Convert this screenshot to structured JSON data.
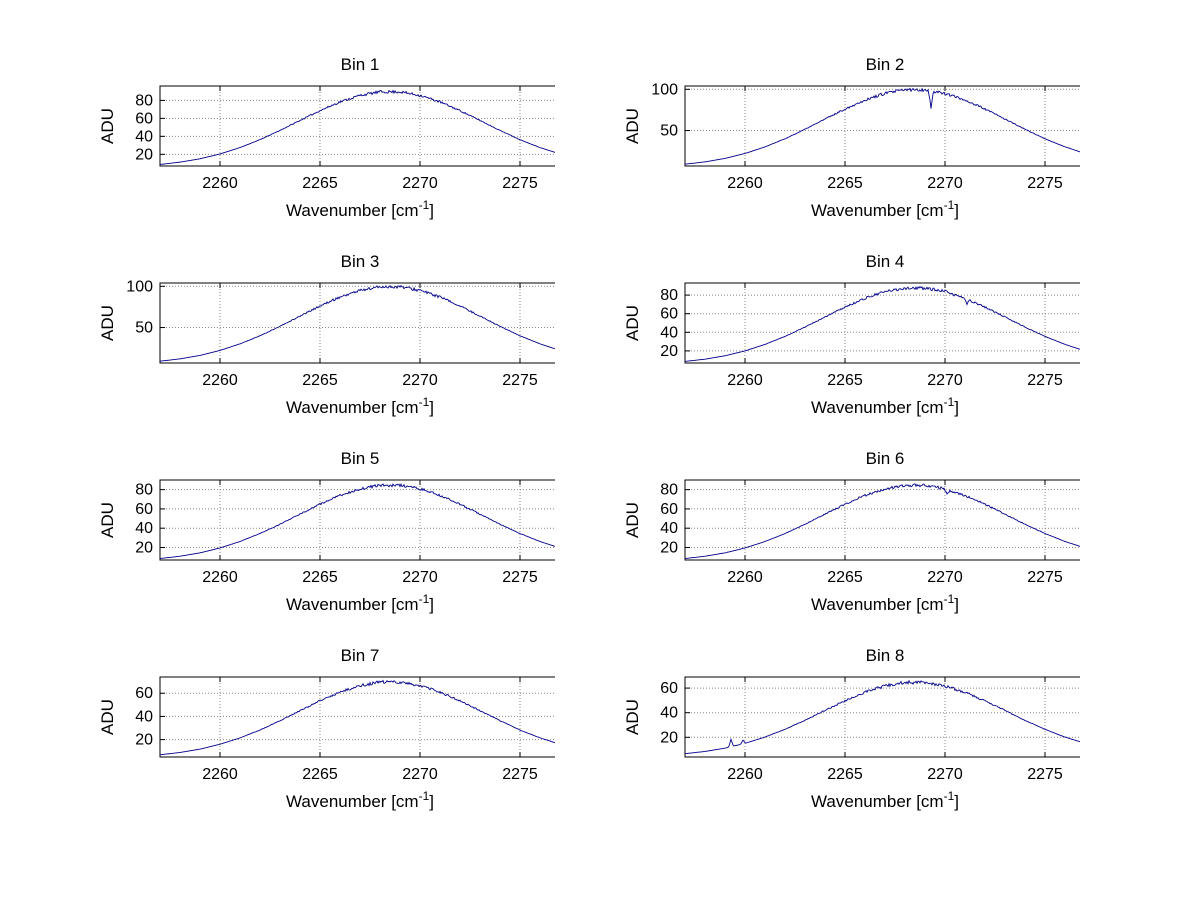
{
  "figure": {
    "background": "#ffffff",
    "line_color": "#00008B",
    "grid_color": "#888888",
    "axis_color": "#000000"
  },
  "chart_data": [
    {
      "type": "line",
      "title": "Bin 1",
      "xlabel": "Wavenumber [cm^-1]",
      "ylabel": "ADU",
      "xlim": [
        2257,
        2277
      ],
      "ylim": [
        7,
        96
      ],
      "xticks": [
        2260,
        2265,
        2270,
        2275
      ],
      "yticks": [
        20,
        40,
        60,
        80
      ],
      "grid": true,
      "legend": false,
      "seed": 11,
      "noise": 1.6,
      "spikes": [],
      "x": [
        2257,
        2258,
        2259,
        2260,
        2261,
        2262,
        2263,
        2264,
        2265,
        2266,
        2267,
        2268,
        2269,
        2270,
        2271,
        2272,
        2273,
        2274,
        2275,
        2276,
        2277
      ],
      "y": [
        8.7,
        11.3,
        15.0,
        20.4,
        27.5,
        36.3,
        46.6,
        57.7,
        68.6,
        78.3,
        85.6,
        89.5,
        89.5,
        85.6,
        78.3,
        68.6,
        57.7,
        46.6,
        36.3,
        27.5,
        20.4
      ]
    },
    {
      "type": "line",
      "title": "Bin 2",
      "xlabel": "Wavenumber [cm^-1]",
      "ylabel": "ADU",
      "xlim": [
        2257,
        2277
      ],
      "ylim": [
        7,
        104
      ],
      "xticks": [
        2260,
        2265,
        2270,
        2275
      ],
      "yticks": [
        50,
        100
      ],
      "grid": true,
      "legend": false,
      "seed": 22,
      "noise": 2.0,
      "spikes": [
        {
          "x": 2269.3,
          "dy": -22,
          "w": 0.12
        }
      ],
      "x": [
        2257,
        2258,
        2259,
        2260,
        2261,
        2262,
        2263,
        2264,
        2265,
        2266,
        2267,
        2268,
        2269,
        2270,
        2271,
        2272,
        2273,
        2274,
        2275,
        2276,
        2277
      ],
      "y": [
        9.2,
        12.0,
        16.2,
        22.2,
        30.2,
        40.0,
        51.5,
        63.9,
        76.1,
        87.0,
        95.1,
        99.4,
        99.4,
        95.1,
        87.0,
        76.1,
        63.9,
        51.5,
        40.0,
        30.2,
        22.2
      ]
    },
    {
      "type": "line",
      "title": "Bin 3",
      "xlabel": "Wavenumber [cm^-1]",
      "ylabel": "ADU",
      "xlim": [
        2257,
        2277
      ],
      "ylim": [
        7,
        104
      ],
      "xticks": [
        2260,
        2265,
        2270,
        2275
      ],
      "yticks": [
        50,
        100
      ],
      "grid": true,
      "legend": false,
      "seed": 33,
      "noise": 2.0,
      "spikes": [],
      "x": [
        2257,
        2258,
        2259,
        2260,
        2261,
        2262,
        2263,
        2264,
        2265,
        2266,
        2267,
        2268,
        2269,
        2270,
        2271,
        2272,
        2273,
        2274,
        2275,
        2276,
        2277
      ],
      "y": [
        9.2,
        12.0,
        16.2,
        22.2,
        30.2,
        40.0,
        51.5,
        63.9,
        76.1,
        87.0,
        95.1,
        99.4,
        99.4,
        95.1,
        87.0,
        76.1,
        63.9,
        51.5,
        40.0,
        30.2,
        22.2
      ]
    },
    {
      "type": "line",
      "title": "Bin 4",
      "xlabel": "Wavenumber [cm^-1]",
      "ylabel": "ADU",
      "xlim": [
        2257,
        2277
      ],
      "ylim": [
        7,
        93
      ],
      "xticks": [
        2260,
        2265,
        2270,
        2275
      ],
      "yticks": [
        20,
        40,
        60,
        80
      ],
      "grid": true,
      "legend": false,
      "seed": 44,
      "noise": 1.7,
      "spikes": [
        {
          "x": 2271.1,
          "dy": -5,
          "w": 0.15
        }
      ],
      "x": [
        2257,
        2258,
        2259,
        2260,
        2261,
        2262,
        2263,
        2264,
        2265,
        2266,
        2267,
        2268,
        2269,
        2270,
        2271,
        2272,
        2273,
        2274,
        2275,
        2276,
        2277
      ],
      "y": [
        8.7,
        11.1,
        14.8,
        20.0,
        27.0,
        35.6,
        45.6,
        56.4,
        67.1,
        76.6,
        83.7,
        87.5,
        87.5,
        83.7,
        76.6,
        67.1,
        56.4,
        45.6,
        35.6,
        27.0,
        20.0
      ]
    },
    {
      "type": "line",
      "title": "Bin 5",
      "xlabel": "Wavenumber [cm^-1]",
      "ylabel": "ADU",
      "xlim": [
        2257,
        2277
      ],
      "ylim": [
        7,
        90
      ],
      "xticks": [
        2260,
        2265,
        2270,
        2275
      ],
      "yticks": [
        20,
        40,
        60,
        80
      ],
      "grid": true,
      "legend": false,
      "seed": 55,
      "noise": 1.6,
      "spikes": [],
      "x": [
        2257,
        2258,
        2259,
        2260,
        2261,
        2262,
        2263,
        2264,
        2265,
        2266,
        2267,
        2268,
        2269,
        2270,
        2271,
        2272,
        2273,
        2274,
        2275,
        2276,
        2277
      ],
      "y": [
        8.5,
        10.9,
        14.4,
        19.5,
        26.2,
        34.5,
        44.1,
        54.6,
        64.9,
        74.0,
        80.9,
        84.5,
        84.5,
        80.9,
        74.0,
        64.9,
        54.6,
        44.1,
        34.5,
        26.2,
        19.5
      ]
    },
    {
      "type": "line",
      "title": "Bin 6",
      "xlabel": "Wavenumber [cm^-1]",
      "ylabel": "ADU",
      "xlim": [
        2257,
        2277
      ],
      "ylim": [
        7,
        90
      ],
      "xticks": [
        2260,
        2265,
        2270,
        2275
      ],
      "yticks": [
        20,
        40,
        60,
        80
      ],
      "grid": true,
      "legend": false,
      "seed": 66,
      "noise": 1.6,
      "spikes": [
        {
          "x": 2270.1,
          "dy": -6,
          "w": 0.15
        }
      ],
      "x": [
        2257,
        2258,
        2259,
        2260,
        2261,
        2262,
        2263,
        2264,
        2265,
        2266,
        2267,
        2268,
        2269,
        2270,
        2271,
        2272,
        2273,
        2274,
        2275,
        2276,
        2277
      ],
      "y": [
        8.5,
        10.9,
        14.4,
        19.5,
        26.2,
        34.5,
        44.1,
        54.6,
        64.9,
        74.0,
        80.9,
        84.5,
        84.5,
        80.9,
        74.0,
        64.9,
        54.6,
        44.1,
        34.5,
        26.2,
        19.5
      ]
    },
    {
      "type": "line",
      "title": "Bin 7",
      "xlabel": "Wavenumber [cm^-1]",
      "ylabel": "ADU",
      "xlim": [
        2257,
        2277
      ],
      "ylim": [
        5,
        74
      ],
      "xticks": [
        2260,
        2265,
        2270,
        2275
      ],
      "yticks": [
        20,
        40,
        60
      ],
      "grid": true,
      "legend": false,
      "seed": 77,
      "noise": 1.4,
      "spikes": [],
      "x": [
        2257,
        2258,
        2259,
        2260,
        2261,
        2262,
        2263,
        2264,
        2265,
        2266,
        2267,
        2268,
        2269,
        2270,
        2271,
        2272,
        2273,
        2274,
        2275,
        2276,
        2277
      ],
      "y": [
        6.9,
        8.9,
        11.8,
        16.0,
        21.5,
        28.3,
        36.3,
        44.9,
        53.4,
        60.9,
        66.6,
        69.6,
        69.6,
        66.6,
        60.9,
        53.4,
        44.9,
        36.3,
        28.3,
        21.5,
        16.0
      ]
    },
    {
      "type": "line",
      "title": "Bin 8",
      "xlabel": "Wavenumber [cm^-1]",
      "ylabel": "ADU",
      "xlim": [
        2257,
        2277
      ],
      "ylim": [
        4,
        69
      ],
      "xticks": [
        2260,
        2265,
        2270,
        2275
      ],
      "yticks": [
        20,
        40,
        60
      ],
      "grid": true,
      "legend": false,
      "seed": 88,
      "noise": 1.4,
      "spikes": [
        {
          "x": 2259.3,
          "dy": 6,
          "w": 0.12
        },
        {
          "x": 2259.9,
          "dy": 3,
          "w": 0.12
        }
      ],
      "x": [
        2257,
        2258,
        2259,
        2260,
        2261,
        2262,
        2263,
        2264,
        2265,
        2266,
        2267,
        2268,
        2269,
        2270,
        2271,
        2272,
        2273,
        2274,
        2275,
        2276,
        2277
      ],
      "y": [
        6.7,
        8.5,
        11.2,
        15.1,
        20.2,
        26.5,
        33.8,
        41.8,
        49.7,
        56.6,
        61.8,
        64.6,
        64.6,
        61.8,
        56.6,
        49.7,
        41.8,
        33.8,
        26.5,
        20.2,
        15.1
      ]
    }
  ]
}
